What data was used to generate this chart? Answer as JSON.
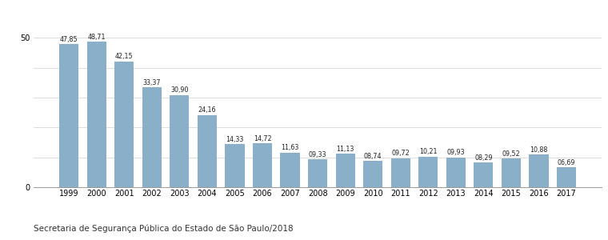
{
  "categories": [
    "1999",
    "2000",
    "2001",
    "2002",
    "2003",
    "2004",
    "2005",
    "2006",
    "2007",
    "2008",
    "2009",
    "2010",
    "2011",
    "2012",
    "2013",
    "2014",
    "2015",
    "2016",
    "2017"
  ],
  "values": [
    47.85,
    48.71,
    42.15,
    33.37,
    30.9,
    24.16,
    14.33,
    14.72,
    11.63,
    9.33,
    11.13,
    8.74,
    9.72,
    10.21,
    9.93,
    8.29,
    9.52,
    10.88,
    6.69
  ],
  "labels": [
    "47,85",
    "48,71",
    "42,15",
    "33,37",
    "30,90",
    "24,16",
    "14,33",
    "14,72",
    "11,63",
    "09,33",
    "11,13",
    "08,74",
    "09,72",
    "10,21",
    "09,93",
    "08,29",
    "09,52",
    "10,88",
    "06,69"
  ],
  "bar_color": "#8aafc8",
  "ylim": [
    0,
    53
  ],
  "yticks": [
    0,
    50
  ],
  "footer": "Secretaria de Segurança Pública do Estado de São Paulo/2018",
  "grid_color": "#d8d8d8",
  "label_fontsize": 5.8,
  "tick_fontsize": 7.0,
  "footer_fontsize": 7.5,
  "bar_width": 0.7
}
